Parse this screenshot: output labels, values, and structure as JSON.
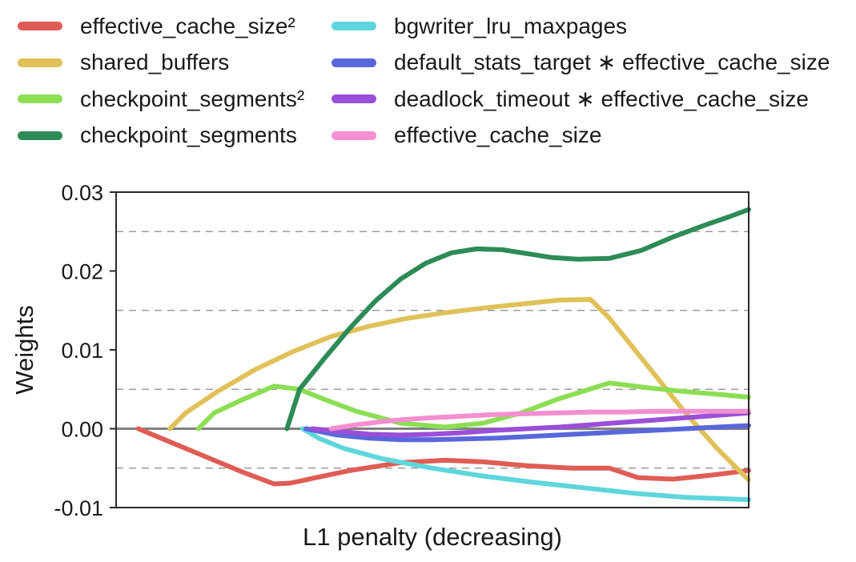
{
  "chart_data": {
    "type": "line",
    "title": "",
    "xlabel": "L1 penalty (decreasing)",
    "ylabel": "Weights",
    "xlim": [
      0,
      100
    ],
    "ylim": [
      -0.01,
      0.03
    ],
    "yticks": [
      -0.01,
      0.0,
      0.01,
      0.02,
      0.03
    ],
    "ytick_labels": [
      "-0.01",
      "0.00",
      "0.01",
      "0.02",
      "0.03"
    ],
    "grid": "horizontal dashed",
    "legend_placement": "top, two columns above plot",
    "series": [
      {
        "name": "effective_cache_size²",
        "color": "#df5d55",
        "x": [
          3.5,
          8,
          14,
          20,
          25,
          27.5,
          31,
          37,
          45,
          52,
          58,
          65,
          72,
          78,
          82.5,
          88,
          94,
          100
        ],
        "y": [
          0.0,
          -0.0015,
          -0.0035,
          -0.0055,
          -0.007,
          -0.0069,
          -0.0063,
          -0.0053,
          -0.0043,
          -0.004,
          -0.0042,
          -0.0047,
          -0.005,
          -0.005,
          -0.0062,
          -0.0064,
          -0.0059,
          -0.0053
        ]
      },
      {
        "name": "shared_buffers",
        "color": "#e0c15a",
        "x": [
          8.5,
          11,
          16,
          22,
          28,
          34,
          40,
          46,
          52,
          58,
          64,
          70,
          75,
          78,
          82,
          86,
          90,
          95,
          100
        ],
        "y": [
          0.0,
          0.002,
          0.0047,
          0.0075,
          0.0098,
          0.0117,
          0.013,
          0.014,
          0.0147,
          0.0153,
          0.0158,
          0.0163,
          0.0164,
          0.014,
          0.01,
          0.006,
          0.002,
          -0.0025,
          -0.0065
        ]
      },
      {
        "name": "checkpoint_segments²",
        "color": "#8cde55",
        "x": [
          13,
          15.5,
          20,
          25,
          29,
          33,
          38,
          45,
          52,
          58,
          64,
          70,
          78,
          84,
          90,
          96,
          100
        ],
        "y": [
          0.0,
          0.002,
          0.0037,
          0.0054,
          0.005,
          0.0037,
          0.0022,
          0.0007,
          0.0002,
          0.0007,
          0.002,
          0.0038,
          0.0058,
          0.0052,
          0.0047,
          0.0043,
          0.004
        ]
      },
      {
        "name": "checkpoint_segments",
        "color": "#2e8b57",
        "x": [
          27,
          29,
          33,
          37,
          41,
          45,
          49,
          53,
          57,
          61,
          65,
          69,
          73,
          78,
          83,
          88,
          93,
          97,
          100
        ],
        "y": [
          0.0,
          0.005,
          0.009,
          0.0128,
          0.0162,
          0.019,
          0.021,
          0.0223,
          0.0228,
          0.0227,
          0.0222,
          0.0217,
          0.0215,
          0.0216,
          0.0226,
          0.0243,
          0.0258,
          0.0269,
          0.0278
        ]
      },
      {
        "name": "bgwriter_lru_maxpages",
        "color": "#5fd6dc",
        "x": [
          29.5,
          32,
          36,
          42,
          50,
          58,
          66,
          74,
          82,
          90,
          100
        ],
        "y": [
          0.0,
          -0.0012,
          -0.0025,
          -0.0038,
          -0.005,
          -0.006,
          -0.0068,
          -0.0075,
          -0.0082,
          -0.0087,
          -0.009
        ]
      },
      {
        "name": "default_stats_target ∗ effective_cache_size",
        "color": "#5a67db",
        "x": [
          30,
          35,
          40,
          45,
          50,
          55,
          60,
          65,
          70,
          75,
          80,
          85,
          90,
          95,
          100
        ],
        "y": [
          0.0,
          -0.0008,
          -0.0012,
          -0.0014,
          -0.0014,
          -0.0013,
          -0.0012,
          -0.001,
          -0.0008,
          -0.0006,
          -0.0004,
          -0.0002,
          0.0,
          0.0002,
          0.0004
        ]
      },
      {
        "name": "deadlock_timeout ∗ effective_cache_size",
        "color": "#9a4fd8",
        "x": [
          31,
          35,
          40,
          45,
          50,
          55,
          60,
          65,
          70,
          75,
          80,
          85,
          90,
          95,
          100
        ],
        "y": [
          0.0,
          -0.0003,
          -0.0007,
          -0.0008,
          -0.0007,
          -0.0005,
          -0.0002,
          0.0,
          0.0002,
          0.0005,
          0.0008,
          0.0011,
          0.0014,
          0.0017,
          0.002
        ]
      },
      {
        "name": "effective_cache_size",
        "color": "#f48fd0",
        "x": [
          34,
          38,
          42,
          46,
          50,
          55,
          60,
          65,
          70,
          75,
          80,
          85,
          90,
          95,
          100
        ],
        "y": [
          0.0,
          0.0005,
          0.0009,
          0.0012,
          0.0014,
          0.0016,
          0.0018,
          0.0019,
          0.002,
          0.0021,
          0.0021,
          0.0022,
          0.0022,
          0.0022,
          0.0022
        ]
      }
    ]
  }
}
